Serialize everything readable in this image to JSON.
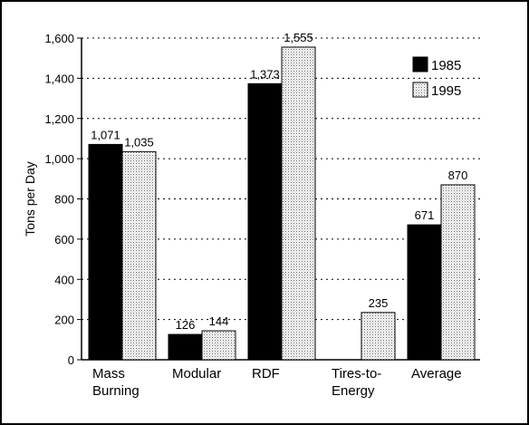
{
  "chart_data": {
    "type": "bar",
    "ylabel": "Tons per Day",
    "xlabel": "",
    "ylim": [
      0,
      1600
    ],
    "yticks": [
      "0",
      "200",
      "400",
      "600",
      "800",
      "1,000",
      "1,200",
      "1,400",
      "1,600"
    ],
    "ytick_values": [
      0,
      200,
      400,
      600,
      800,
      1000,
      1200,
      1400,
      1600
    ],
    "grid": true,
    "legend_position": "top-right",
    "categories": [
      [
        "Mass",
        "Burning"
      ],
      [
        "Modular"
      ],
      [
        "RDF"
      ],
      [
        "Tires-to-",
        "Energy"
      ],
      [
        "Average"
      ]
    ],
    "series": [
      {
        "name": "1985",
        "color": "#000000",
        "values": [
          1071,
          126,
          1373,
          null,
          671
        ],
        "labels": [
          "1,071",
          "126",
          "1,373",
          "",
          "671"
        ]
      },
      {
        "name": "1995",
        "color": "#e6e6e6",
        "pattern": "stipple",
        "values": [
          1035,
          144,
          1555,
          235,
          870
        ],
        "labels": [
          "1,035",
          "144",
          "1,555",
          "235",
          "870"
        ]
      }
    ]
  }
}
